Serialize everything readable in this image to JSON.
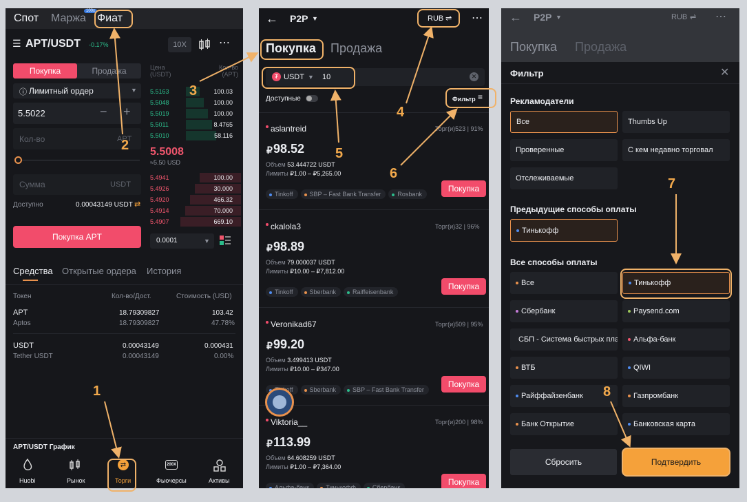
{
  "left": {
    "tabs": [
      "Спот",
      "Маржа",
      "Фиат"
    ],
    "tab_badge": "100x",
    "pair": "APT/USDT",
    "change": "-0.17%",
    "leverage": "10X",
    "buy_tab": "Покупка",
    "sell_tab": "Продажа",
    "order_type": "Лимитный ордер",
    "price_value": "5.5022",
    "qty_placeholder": "Кол-во",
    "qty_unit": "APT",
    "sum_placeholder": "Сумма",
    "sum_unit": "USDT",
    "available_label": "Доступно",
    "available_value": "0.00043149 USDT",
    "buy_button": "Покупка APT",
    "book_header_price": "Цена (USDT)",
    "book_header_qty": "Кол-во (APT)",
    "bids": [
      {
        "price": "5.5163",
        "qty": "100.03"
      },
      {
        "price": "5.5048",
        "qty": "100.00"
      },
      {
        "price": "5.5019",
        "qty": "100.00"
      },
      {
        "price": "5.5011",
        "qty": "8.4765"
      },
      {
        "price": "5.5010",
        "qty": "58.116"
      }
    ],
    "mid_price": "5.5008",
    "mid_sub": "≈5.50 USD",
    "asks": [
      {
        "price": "5.4941",
        "qty": "100.00"
      },
      {
        "price": "5.4926",
        "qty": "30.000"
      },
      {
        "price": "5.4920",
        "qty": "466.32"
      },
      {
        "price": "5.4914",
        "qty": "70.000"
      },
      {
        "price": "5.4907",
        "qty": "669.10"
      }
    ],
    "depth_value": "0.0001",
    "bottom_tabs": [
      "Средства",
      "Открытые ордера",
      "История"
    ],
    "assets_headers": [
      "Токен",
      "Кол-во/Дост.",
      "Стоимость (USD)"
    ],
    "assets": [
      {
        "token": "APT",
        "name": "Aptos",
        "qty": "18.79309827",
        "avail": "18.79309827",
        "value": "103.42",
        "pct": "47.78%"
      },
      {
        "token": "USDT",
        "name": "Tether USDT",
        "qty": "0.00043149",
        "avail": "0.00043149",
        "value": "0.000431",
        "pct": "0.00%"
      }
    ],
    "chart_label": "APT/USDT График",
    "nav": [
      "Huobi",
      "Рынок",
      "Торги",
      "Фьючерсы",
      "Активы"
    ]
  },
  "middle": {
    "title": "P2P",
    "currency": "RUB",
    "tab_buy": "Покупка",
    "tab_sell": "Продажа",
    "coin": "USDT",
    "amount": "10",
    "available_label": "Доступные",
    "filter_label": "Фильтр",
    "volume_label": "Объем",
    "limits_label": "Лимиты",
    "buy_label": "Покупка",
    "offers": [
      {
        "name": "aslantreid",
        "stats": "Торг(и)523 | 91%",
        "price": "98.52",
        "volume": "53.444722 USDT",
        "limits": "₽1.00 – ₽5,265.00",
        "methods": [
          "Tinkoff",
          "SBP – Fast Bank Transfer",
          "Rosbank"
        ]
      },
      {
        "name": "ckalola3",
        "stats": "Торг(и)32 | 96%",
        "price": "98.89",
        "volume": "79.000037 USDT",
        "limits": "₽10.00 – ₽7,812.00",
        "methods": [
          "Tinkoff",
          "Sberbank",
          "Raiffeisenbank"
        ]
      },
      {
        "name": "Veronikad67",
        "stats": "Торг(и)509 | 95%",
        "price": "99.20",
        "volume": "3.499413 USDT",
        "limits": "₽10.00 – ₽347.00",
        "methods": [
          "Tinkoff",
          "Sberbank",
          "SBP – Fast Bank Transfer"
        ]
      },
      {
        "name": "Viktoria__",
        "stats": "Торг(и)200 | 98%",
        "price": "113.99",
        "volume": "64.608259 USDT",
        "limits": "₽1.00 – ₽7,364.00",
        "methods": [
          "Альфа-банк",
          "Тинькофф",
          "Сбербанк"
        ]
      }
    ]
  },
  "right": {
    "title": "P2P",
    "currency": "RUB",
    "tab_buy": "Покупка",
    "tab_sell": "Продажа",
    "filter_title": "Фильтр",
    "advertisers_title": "Рекламодатели",
    "advertisers": [
      "Все",
      "Thumbs Up",
      "Проверенные",
      "С кем недавно торговал",
      "Отслеживаемые"
    ],
    "prev_methods_title": "Предыдущие способы оплаты",
    "prev_methods": [
      "Тинькофф"
    ],
    "all_methods_title": "Все способы оплаты",
    "methods": [
      {
        "label": "Все",
        "color": "#e8914d"
      },
      {
        "label": "Тинькофф",
        "color": "#4f8cf0"
      },
      {
        "label": "Сбербанк",
        "color": "#c77dda"
      },
      {
        "label": "Paysend.com",
        "color": "#9ec85a"
      },
      {
        "label": "СБП - Система быстрых платежей",
        "color": "#e8914d"
      },
      {
        "label": "Альфа-банк",
        "color": "#f0566d"
      },
      {
        "label": "ВТБ",
        "color": "#e8914d"
      },
      {
        "label": "QIWI",
        "color": "#4f8cf0"
      },
      {
        "label": "Райффайзенбанк",
        "color": "#4f8cf0"
      },
      {
        "label": "Газпромбанк",
        "color": "#e8914d"
      },
      {
        "label": "Банк Открытие",
        "color": "#e8914d"
      },
      {
        "label": "Банковская карта",
        "color": "#4f8cf0"
      }
    ],
    "reset_button": "Сбросить",
    "confirm_button": "Подтвердить"
  },
  "annotations": [
    "1",
    "2",
    "3",
    "4",
    "5",
    "6",
    "7",
    "8"
  ],
  "colors": {
    "accent_orange": "#f5a13a",
    "buy_pink": "#f24c6b",
    "green": "#2cbc8b",
    "red": "#f0566d",
    "background": "#16171b"
  }
}
